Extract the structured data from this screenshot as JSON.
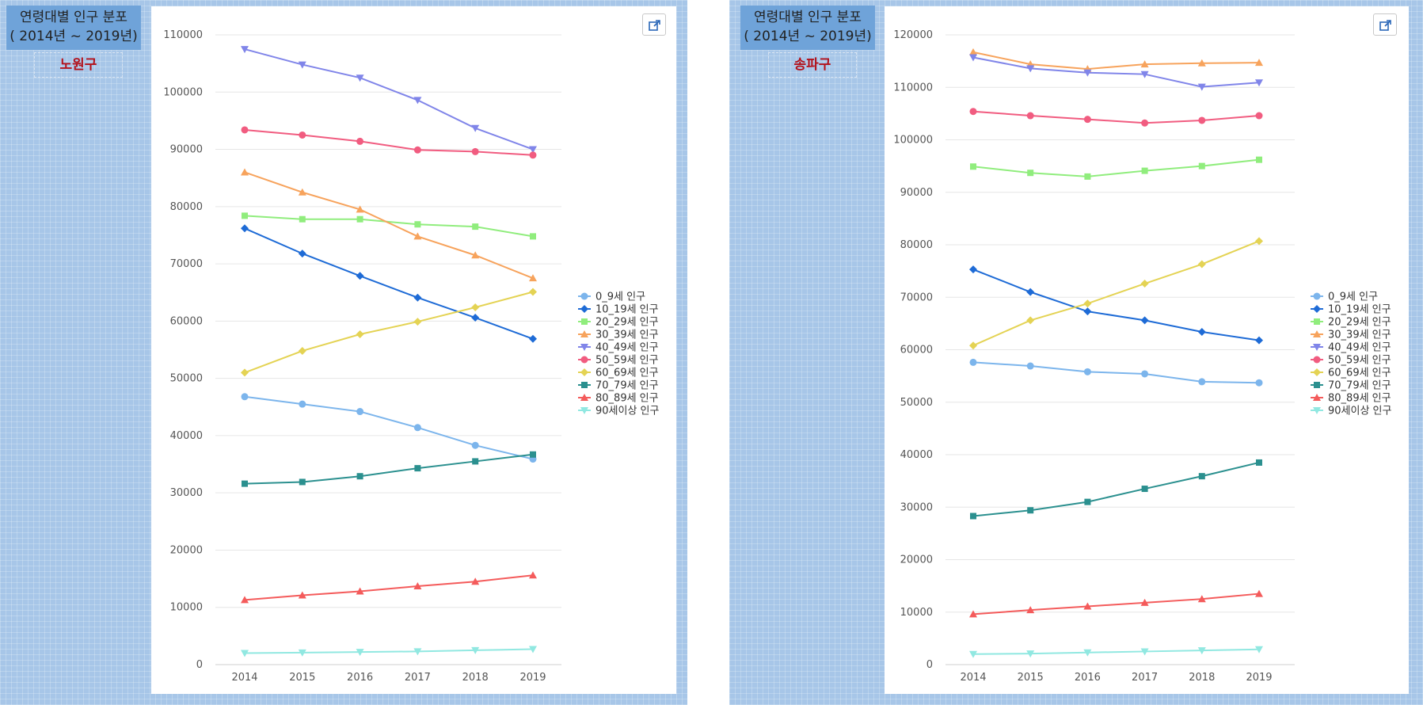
{
  "panels": [
    {
      "title_line1": "연령대별 인구 분포",
      "title_line2": "( 2014년 ~ 2019년)",
      "district": "노원구"
    },
    {
      "title_line1": "연령대별 인구 분포",
      "title_line2": "( 2014년 ~ 2019년)",
      "district": "송파구"
    }
  ],
  "icons": {
    "export": "external-link-icon"
  },
  "series_styles": [
    {
      "color": "#7cb5ec",
      "marker": "circle"
    },
    {
      "color": "#1e6bd6",
      "marker": "diamond"
    },
    {
      "color": "#90ed7d",
      "marker": "square"
    },
    {
      "color": "#f7a35c",
      "marker": "triangle"
    },
    {
      "color": "#8085e9",
      "marker": "triangle-down"
    },
    {
      "color": "#f15c80",
      "marker": "circle"
    },
    {
      "color": "#e4d354",
      "marker": "diamond"
    },
    {
      "color": "#2b908f",
      "marker": "square"
    },
    {
      "color": "#f45b5b",
      "marker": "triangle"
    },
    {
      "color": "#91e8e1",
      "marker": "triangle-down"
    }
  ],
  "chart_data": [
    {
      "type": "line",
      "x": [
        "2014",
        "2015",
        "2016",
        "2017",
        "2018",
        "2019"
      ],
      "ylim": [
        0,
        110000
      ],
      "yticks": [
        0,
        10000,
        20000,
        30000,
        40000,
        50000,
        60000,
        70000,
        80000,
        90000,
        100000,
        110000
      ],
      "grid": true,
      "legend": "right",
      "series": [
        {
          "name": "0_9세 인구",
          "values": [
            46800,
            45500,
            44200,
            41400,
            38300,
            35900
          ]
        },
        {
          "name": "10_19세 인구",
          "values": [
            76200,
            71800,
            67900,
            64100,
            60600,
            56900
          ]
        },
        {
          "name": "20_29세 인구",
          "values": [
            78400,
            77800,
            77800,
            76900,
            76500,
            74800
          ]
        },
        {
          "name": "30_39세 인구",
          "values": [
            86000,
            82500,
            79500,
            74800,
            71500,
            67500
          ]
        },
        {
          "name": "40_49세 인구",
          "values": [
            107500,
            104800,
            102500,
            98600,
            93700,
            90000
          ]
        },
        {
          "name": "50_59세 인구",
          "values": [
            93400,
            92500,
            91400,
            89900,
            89600,
            89000
          ]
        },
        {
          "name": "60_69세 인구",
          "values": [
            51000,
            54800,
            57700,
            59900,
            62400,
            65100
          ]
        },
        {
          "name": "70_79세 인구",
          "values": [
            31600,
            31900,
            32900,
            34300,
            35500,
            36700
          ]
        },
        {
          "name": "80_89세 인구",
          "values": [
            11300,
            12100,
            12800,
            13700,
            14500,
            15600
          ]
        },
        {
          "name": "90세이상 인구",
          "values": [
            2000,
            2100,
            2200,
            2300,
            2500,
            2700
          ]
        }
      ]
    },
    {
      "type": "line",
      "x": [
        "2014",
        "2015",
        "2016",
        "2017",
        "2018",
        "2019"
      ],
      "ylim": [
        0,
        120000
      ],
      "yticks": [
        0,
        10000,
        20000,
        30000,
        40000,
        50000,
        60000,
        70000,
        80000,
        90000,
        100000,
        110000,
        120000
      ],
      "grid": true,
      "legend": "right",
      "series": [
        {
          "name": "0_9세 인구",
          "values": [
            57600,
            56900,
            55800,
            55400,
            53900,
            53700
          ]
        },
        {
          "name": "10_19세 인구",
          "values": [
            75300,
            71000,
            67300,
            65600,
            63400,
            61800
          ]
        },
        {
          "name": "20_29세 인구",
          "values": [
            94900,
            93700,
            93000,
            94100,
            95000,
            96200
          ]
        },
        {
          "name": "30_39세 인구",
          "values": [
            116700,
            114400,
            113500,
            114400,
            114600,
            114700
          ]
        },
        {
          "name": "40_49세 인구",
          "values": [
            115700,
            113600,
            112800,
            112500,
            110100,
            110900
          ]
        },
        {
          "name": "50_59세 인구",
          "values": [
            105400,
            104600,
            103900,
            103200,
            103700,
            104600
          ]
        },
        {
          "name": "60_69세 인구",
          "values": [
            60800,
            65600,
            68800,
            72600,
            76300,
            80700
          ]
        },
        {
          "name": "70_79세 인구",
          "values": [
            28300,
            29400,
            31000,
            33500,
            35900,
            38500
          ]
        },
        {
          "name": "80_89세 인구",
          "values": [
            9600,
            10400,
            11100,
            11800,
            12500,
            13500
          ]
        },
        {
          "name": "90세이상 인구",
          "values": [
            2000,
            2100,
            2300,
            2500,
            2700,
            2900
          ]
        }
      ]
    }
  ]
}
